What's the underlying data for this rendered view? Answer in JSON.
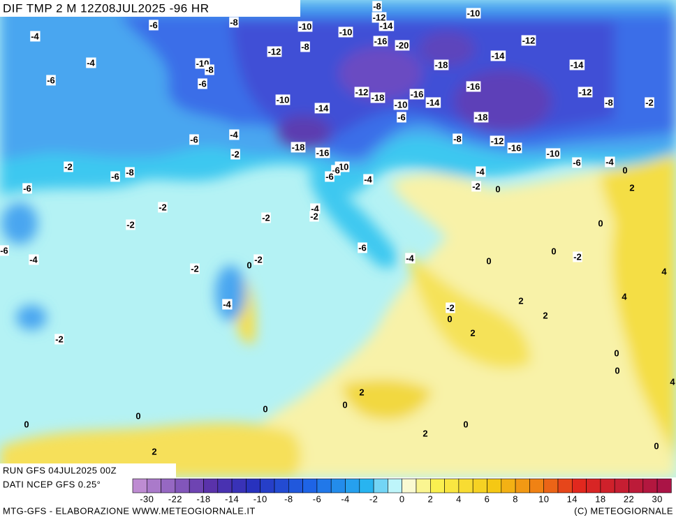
{
  "header": {
    "title": "DIF TMP 2 M 12Z08JUL2025 -96 HR"
  },
  "run": "RUN GFS 04JUL2025 00Z",
  "source": "DATI NCEP GFS 0.25°",
  "footer": {
    "left": "MTG-GFS - ELABORAZIONE WWW.METEOGIORNALE.IT",
    "right": "(C) METEOGIORNALE"
  },
  "colorbar": {
    "labels": [
      -30,
      -22,
      -18,
      -14,
      -10,
      -8,
      -6,
      -4,
      -2,
      0,
      2,
      4,
      6,
      8,
      10,
      14,
      18,
      22,
      30
    ]
  },
  "contour_labels": [
    -4,
    -6,
    -8,
    -4,
    -6,
    -10,
    -8,
    -6,
    -10,
    -10,
    -8,
    -12,
    -14,
    -8,
    -12,
    -16,
    -20,
    -10,
    -12,
    -14,
    -18,
    -14,
    -16,
    -12,
    -8,
    -2,
    -12,
    -18,
    -16,
    -10,
    -14,
    -10,
    -14,
    -18,
    -6,
    -18,
    -16,
    -8,
    -12,
    -16,
    -10,
    -6,
    -4,
    0,
    -4,
    -6,
    -2,
    -10,
    -6,
    -6,
    -4,
    -4,
    -2,
    -6,
    -8,
    -6,
    -2,
    0,
    2,
    -2,
    -4,
    -2,
    -2,
    -2,
    0,
    -6,
    -6,
    0,
    -4,
    -4,
    -2,
    -2,
    0,
    -2,
    0,
    4,
    4,
    -4,
    2,
    -2,
    0,
    2,
    2,
    -2,
    0,
    0,
    4,
    2,
    0,
    0,
    0,
    0,
    0,
    2,
    2,
    0
  ]
}
